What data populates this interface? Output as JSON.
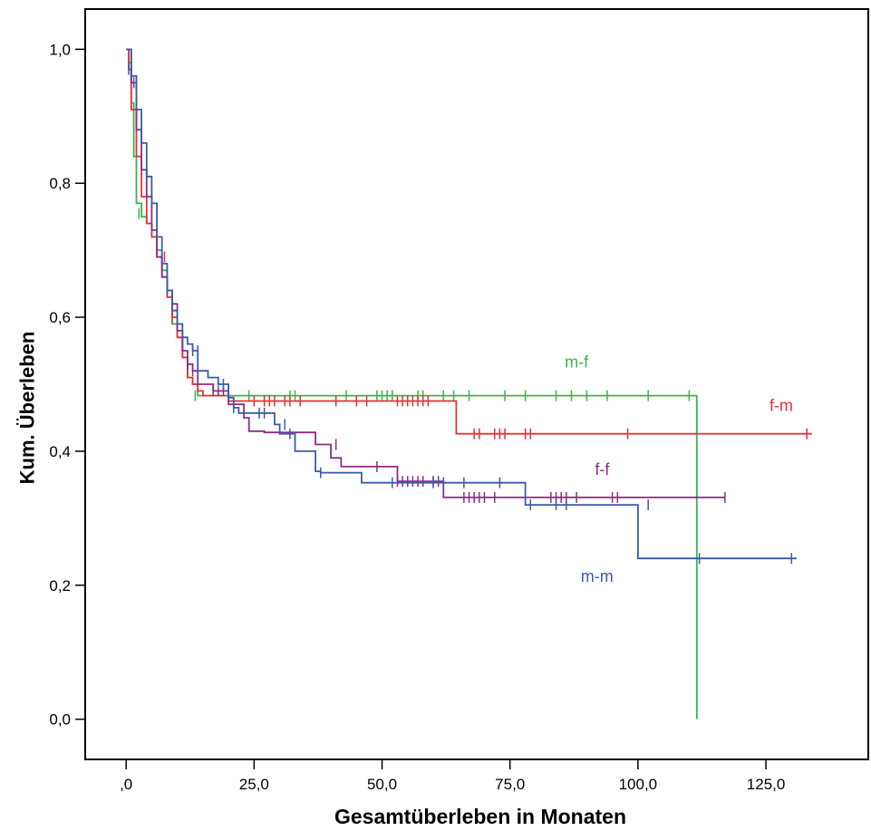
{
  "chart_data": {
    "type": "line",
    "xlabel": "Gesamtüberleben in Monaten",
    "ylabel": "Kum. Überleben",
    "xlim": [
      -8,
      145
    ],
    "ylim": [
      -0.06,
      1.06
    ],
    "xticks": [
      0,
      25,
      50,
      75,
      100,
      125
    ],
    "xtick_labels": [
      ",0",
      "25,0",
      "50,0",
      "75,0",
      "100,0",
      "125,0"
    ],
    "yticks": [
      0,
      0.2,
      0.4,
      0.6,
      0.8,
      1.0
    ],
    "ytick_labels": [
      "0,0",
      "0,2",
      "0,4",
      "0,6",
      "0,8",
      "1,0"
    ],
    "grid": false,
    "series": [
      {
        "name": "m-f",
        "color": "#3cb44b",
        "label_pos": [
          88,
          0.525
        ],
        "x": [
          0,
          0.5,
          1,
          1.5,
          2,
          3,
          4,
          5,
          6,
          7,
          8,
          9,
          10,
          11,
          12,
          13,
          14,
          111.5,
          111.5
        ],
        "y": [
          1.0,
          0.98,
          0.92,
          0.84,
          0.77,
          0.75,
          0.74,
          0.72,
          0.7,
          0.67,
          0.63,
          0.59,
          0.57,
          0.54,
          0.51,
          0.5,
          0.483,
          0.483,
          0.0
        ],
        "censor_x": [
          2.5,
          13.5,
          24,
          32,
          33,
          43,
          49,
          50,
          51,
          52,
          57,
          58,
          62,
          64,
          67,
          74,
          78,
          84,
          87,
          90,
          94,
          102,
          110
        ],
        "censor_y": [
          0.755,
          0.483,
          0.483,
          0.483,
          0.483,
          0.483,
          0.483,
          0.483,
          0.483,
          0.483,
          0.483,
          0.483,
          0.483,
          0.483,
          0.483,
          0.483,
          0.483,
          0.483,
          0.483,
          0.483,
          0.483,
          0.483,
          0.483
        ]
      },
      {
        "name": "f-m",
        "color": "#e8303a",
        "label_pos": [
          128,
          0.46
        ],
        "x": [
          0,
          0.5,
          1,
          2,
          3,
          4,
          5,
          6,
          7,
          8,
          9,
          10,
          11,
          12,
          13,
          14,
          15,
          20,
          64.5,
          64.5,
          134
        ],
        "y": [
          1.0,
          0.97,
          0.91,
          0.84,
          0.78,
          0.74,
          0.72,
          0.69,
          0.66,
          0.63,
          0.6,
          0.57,
          0.54,
          0.51,
          0.5,
          0.49,
          0.483,
          0.475,
          0.475,
          0.426,
          0.426
        ],
        "censor_x": [
          7,
          7.5,
          9,
          25,
          27,
          28,
          29,
          31,
          32,
          34,
          41,
          45,
          47,
          53,
          54,
          55,
          56,
          57,
          58,
          59,
          68,
          69,
          72,
          73,
          74,
          78,
          79,
          98,
          133
        ],
        "censor_y": [
          0.69,
          0.69,
          0.6,
          0.475,
          0.475,
          0.475,
          0.475,
          0.475,
          0.475,
          0.475,
          0.475,
          0.475,
          0.475,
          0.475,
          0.475,
          0.475,
          0.475,
          0.475,
          0.475,
          0.475,
          0.426,
          0.426,
          0.426,
          0.426,
          0.426,
          0.426,
          0.426,
          0.426,
          0.426
        ]
      },
      {
        "name": "f-f",
        "color": "#8b2d87",
        "label_pos": [
          93,
          0.365
        ],
        "x": [
          0,
          1,
          2,
          3,
          4,
          5,
          6,
          7,
          8,
          9,
          10,
          11,
          12,
          13,
          14,
          17,
          20,
          23,
          24,
          27,
          37,
          40,
          42,
          53,
          62,
          62,
          117
        ],
        "y": [
          1.0,
          0.95,
          0.88,
          0.82,
          0.78,
          0.73,
          0.69,
          0.66,
          0.64,
          0.62,
          0.58,
          0.55,
          0.53,
          0.52,
          0.5,
          0.49,
          0.47,
          0.45,
          0.43,
          0.428,
          0.41,
          0.39,
          0.377,
          0.355,
          0.355,
          0.331,
          0.331
        ],
        "censor_x": [
          12,
          13,
          14,
          17,
          18,
          19,
          41,
          49,
          53,
          54,
          55,
          56,
          57,
          58,
          60,
          61,
          66,
          67,
          68,
          69,
          70,
          72,
          83,
          84,
          85,
          86,
          88,
          95,
          96,
          117
        ],
        "censor_y": [
          0.53,
          0.52,
          0.52,
          0.49,
          0.49,
          0.49,
          0.41,
          0.377,
          0.355,
          0.355,
          0.355,
          0.355,
          0.355,
          0.355,
          0.355,
          0.355,
          0.331,
          0.331,
          0.331,
          0.331,
          0.331,
          0.331,
          0.331,
          0.331,
          0.331,
          0.331,
          0.331,
          0.331,
          0.331,
          0.331
        ]
      },
      {
        "name": "m-m",
        "color": "#3a5ba9",
        "label_pos": [
          92,
          0.205
        ],
        "x": [
          0,
          1,
          2,
          3,
          4,
          5,
          6,
          7,
          8,
          9,
          10,
          11,
          12,
          13,
          14,
          16,
          18,
          20,
          21,
          22,
          25,
          29,
          30,
          33,
          37,
          38,
          46,
          49,
          78,
          78,
          100,
          100,
          131
        ],
        "y": [
          1.0,
          0.96,
          0.91,
          0.86,
          0.81,
          0.77,
          0.72,
          0.68,
          0.64,
          0.61,
          0.59,
          0.57,
          0.56,
          0.55,
          0.52,
          0.51,
          0.5,
          0.48,
          0.465,
          0.457,
          0.457,
          0.44,
          0.426,
          0.4,
          0.37,
          0.368,
          0.353,
          0.353,
          0.353,
          0.32,
          0.32,
          0.24,
          0.24
        ],
        "censor_x": [
          0.5,
          1.5,
          8,
          13,
          14,
          19,
          21,
          26,
          27,
          31,
          32,
          38,
          52,
          60,
          62,
          66,
          73,
          79,
          84,
          86,
          102,
          112,
          130
        ],
        "censor_y": [
          0.97,
          0.95,
          0.64,
          0.55,
          0.55,
          0.5,
          0.465,
          0.457,
          0.457,
          0.44,
          0.426,
          0.368,
          0.353,
          0.353,
          0.353,
          0.353,
          0.353,
          0.32,
          0.32,
          0.32,
          0.32,
          0.24,
          0.24
        ]
      }
    ]
  }
}
